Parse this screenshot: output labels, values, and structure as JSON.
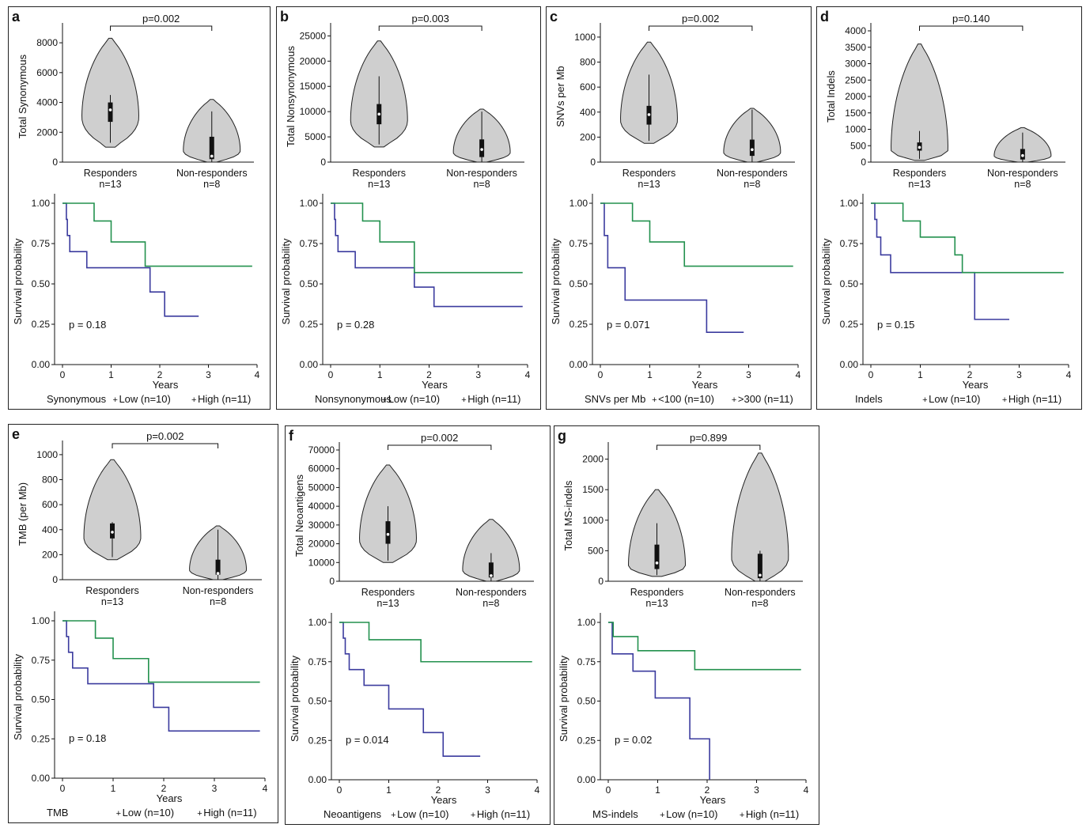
{
  "chart_data": [
    {
      "id": "a",
      "violin": {
        "type": "violin",
        "ylabel": "Total Synonymous",
        "yticks": [
          0,
          2000,
          4000,
          6000,
          8000
        ],
        "ylim": [
          0,
          8800
        ],
        "pvalue": "p=0.002",
        "groups": [
          {
            "name": "Responders",
            "n": "n=13",
            "min": 1000,
            "q1": 2700,
            "median": 3500,
            "q3": 4000,
            "max": 8300,
            "wmin": 1300,
            "wmax": 4500
          },
          {
            "name": "Non-responders",
            "n": "n=8",
            "min": 0,
            "q1": 200,
            "median": 400,
            "q3": 1700,
            "max": 4200,
            "wmin": 0,
            "wmax": 3400
          }
        ]
      },
      "km": {
        "type": "line",
        "ylabel": "Survival probability",
        "xlabel": "Years",
        "xticks": [
          0,
          1,
          2,
          3,
          4
        ],
        "yticks": [
          "0.00",
          "0.25",
          "0.50",
          "0.75",
          "1.00"
        ],
        "xlim": [
          0,
          4
        ],
        "pvalue": "p = 0.18",
        "legend_title": "Synonymous",
        "legend": [
          "Low (n=10)",
          "High (n=11)"
        ],
        "series": [
          {
            "name": "Low (n=10)",
            "color": "#3b3b9e",
            "x": [
              0,
              0.08,
              0.1,
              0.15,
              0.5,
              1.8,
              2.1,
              2.8
            ],
            "y": [
              1,
              0.9,
              0.8,
              0.7,
              0.6,
              0.45,
              0.3,
              0.3
            ]
          },
          {
            "name": "High (n=11)",
            "color": "#23914e",
            "x": [
              0,
              0.65,
              1.0,
              1.7,
              3.9
            ],
            "y": [
              1,
              0.89,
              0.76,
              0.61,
              0.61
            ]
          }
        ]
      }
    },
    {
      "id": "b",
      "violin": {
        "type": "violin",
        "ylabel": "Total Nonsynonymous",
        "yticks": [
          0,
          5000,
          10000,
          15000,
          20000,
          25000
        ],
        "ylim": [
          0,
          26000
        ],
        "pvalue": "p=0.003",
        "groups": [
          {
            "name": "Responders",
            "n": "n=13",
            "min": 3000,
            "q1": 7500,
            "median": 9500,
            "q3": 11500,
            "max": 24000,
            "wmin": 3500,
            "wmax": 17000
          },
          {
            "name": "Non-responders",
            "n": "n=8",
            "min": 0,
            "q1": 1000,
            "median": 2500,
            "q3": 4500,
            "max": 10500,
            "wmin": 0,
            "wmax": 10000
          }
        ]
      },
      "km": {
        "type": "line",
        "ylabel": "Survival probability",
        "xlabel": "Years",
        "xticks": [
          0,
          1,
          2,
          3,
          4
        ],
        "yticks": [
          "0.00",
          "0.25",
          "0.50",
          "0.75",
          "1.00"
        ],
        "xlim": [
          0,
          4
        ],
        "pvalue": "p = 0.28",
        "legend_title": "Nonsynonymous",
        "legend": [
          "Low (n=10)",
          "High (n=11)"
        ],
        "series": [
          {
            "name": "Low (n=10)",
            "color": "#3b3b9e",
            "x": [
              0,
              0.08,
              0.1,
              0.15,
              0.5,
              1.7,
              2.1,
              3.9
            ],
            "y": [
              1,
              0.9,
              0.8,
              0.7,
              0.6,
              0.48,
              0.36,
              0.36
            ]
          },
          {
            "name": "High (n=11)",
            "color": "#23914e",
            "x": [
              0,
              0.65,
              1.0,
              1.7,
              3.9
            ],
            "y": [
              1,
              0.89,
              0.76,
              0.57,
              0.57
            ]
          }
        ]
      }
    },
    {
      "id": "c",
      "violin": {
        "type": "violin",
        "ylabel": "SNVs per Mb",
        "yticks": [
          0,
          200,
          400,
          600,
          800,
          1000
        ],
        "ylim": [
          0,
          1050
        ],
        "pvalue": "p=0.002",
        "groups": [
          {
            "name": "Responders",
            "n": "n=13",
            "min": 150,
            "q1": 300,
            "median": 380,
            "q3": 450,
            "max": 960,
            "wmin": 170,
            "wmax": 700
          },
          {
            "name": "Non-responders",
            "n": "n=8",
            "min": 0,
            "q1": 50,
            "median": 100,
            "q3": 180,
            "max": 430,
            "wmin": 0,
            "wmax": 420
          }
        ]
      },
      "km": {
        "type": "line",
        "ylabel": "Survival probability",
        "xlabel": "Years",
        "xticks": [
          0,
          1,
          2,
          3,
          4
        ],
        "yticks": [
          "0.00",
          "0.25",
          "0.50",
          "0.75",
          "1.00"
        ],
        "xlim": [
          0,
          4
        ],
        "pvalue": "p = 0.071",
        "legend_title": "SNVs per Mb",
        "legend": [
          "<100 (n=10)",
          ">300 (n=11)"
        ],
        "series": [
          {
            "name": "<100 (n=10)",
            "color": "#3b3b9e",
            "x": [
              0,
              0.08,
              0.15,
              0.5,
              2.15,
              2.9
            ],
            "y": [
              1,
              0.8,
              0.6,
              0.4,
              0.2,
              0.2
            ]
          },
          {
            "name": ">300 (n=11)",
            "color": "#23914e",
            "x": [
              0,
              0.65,
              1.0,
              1.7,
              3.9
            ],
            "y": [
              1,
              0.89,
              0.76,
              0.61,
              0.61
            ]
          }
        ]
      }
    },
    {
      "id": "d",
      "violin": {
        "type": "violin",
        "ylabel": "Total Indels",
        "yticks": [
          0,
          500,
          1000,
          1500,
          2000,
          2500,
          3000,
          3500,
          4000
        ],
        "ylim": [
          0,
          4000
        ],
        "pvalue": "p=0.140",
        "groups": [
          {
            "name": "Responders",
            "n": "n=13",
            "min": 50,
            "q1": 350,
            "median": 450,
            "q3": 600,
            "max": 3600,
            "wmin": 100,
            "wmax": 950
          },
          {
            "name": "Non-responders",
            "n": "n=8",
            "min": 0,
            "q1": 80,
            "median": 200,
            "q3": 400,
            "max": 1050,
            "wmin": 0,
            "wmax": 900
          }
        ]
      },
      "km": {
        "type": "line",
        "ylabel": "Survival probability",
        "xlabel": "Years",
        "xticks": [
          0,
          1,
          2,
          3,
          4
        ],
        "yticks": [
          "0.00",
          "0.25",
          "0.50",
          "0.75",
          "1.00"
        ],
        "xlim": [
          0,
          4
        ],
        "pvalue": "p = 0.15",
        "legend_title": "Indels",
        "legend": [
          "Low (n=10)",
          "High (n=11)"
        ],
        "series": [
          {
            "name": "Low (n=10)",
            "color": "#3b3b9e",
            "x": [
              0,
              0.08,
              0.12,
              0.2,
              0.4,
              2.1,
              2.8
            ],
            "y": [
              1,
              0.9,
              0.79,
              0.68,
              0.57,
              0.28,
              0.28
            ]
          },
          {
            "name": "High (n=11)",
            "color": "#23914e",
            "x": [
              0,
              0.65,
              1.0,
              1.7,
              1.85,
              3.9
            ],
            "y": [
              1,
              0.89,
              0.79,
              0.68,
              0.57,
              0.57
            ]
          }
        ]
      }
    },
    {
      "id": "e",
      "violin": {
        "type": "violin",
        "ylabel": "TMB (per Mb)",
        "yticks": [
          0,
          200,
          400,
          600,
          800,
          1000
        ],
        "ylim": [
          0,
          1050
        ],
        "pvalue": "p=0.002",
        "groups": [
          {
            "name": "Responders",
            "n": "n=13",
            "min": 160,
            "q1": 330,
            "median": 380,
            "q3": 450,
            "max": 960,
            "wmin": 180,
            "wmax": 460
          },
          {
            "name": "Non-responders",
            "n": "n=8",
            "min": 0,
            "q1": 40,
            "median": 50,
            "q3": 160,
            "max": 430,
            "wmin": 0,
            "wmax": 400
          }
        ]
      },
      "km": {
        "type": "line",
        "ylabel": "Survival probability",
        "xlabel": "Years",
        "xticks": [
          0,
          1,
          2,
          3,
          4
        ],
        "yticks": [
          "0.00",
          "0.25",
          "0.50",
          "0.75",
          "1.00"
        ],
        "xlim": [
          0,
          4
        ],
        "pvalue": "p = 0.18",
        "legend_title": "TMB",
        "legend": [
          "Low (n=10)",
          "High (n=11)"
        ],
        "series": [
          {
            "name": "Low (n=10)",
            "color": "#3b3b9e",
            "x": [
              0,
              0.08,
              0.12,
              0.2,
              0.5,
              1.8,
              2.1,
              3.9
            ],
            "y": [
              1,
              0.9,
              0.8,
              0.7,
              0.6,
              0.45,
              0.3,
              0.3
            ]
          },
          {
            "name": "High (n=11)",
            "color": "#23914e",
            "x": [
              0,
              0.65,
              1.0,
              1.7,
              3.9
            ],
            "y": [
              1,
              0.89,
              0.76,
              0.61,
              0.61
            ]
          }
        ]
      }
    },
    {
      "id": "f",
      "violin": {
        "type": "violin",
        "ylabel": "Total Neoantigens",
        "yticks": [
          0,
          10000,
          20000,
          30000,
          40000,
          50000,
          60000,
          70000
        ],
        "ylim": [
          0,
          70000
        ],
        "pvalue": "p=0.002",
        "groups": [
          {
            "name": "Responders",
            "n": "n=13",
            "min": 10000,
            "q1": 20000,
            "median": 25000,
            "q3": 32000,
            "max": 62000,
            "wmin": 11000,
            "wmax": 40000
          },
          {
            "name": "Non-responders",
            "n": "n=8",
            "min": 0,
            "q1": 2000,
            "median": 3000,
            "q3": 10000,
            "max": 33000,
            "wmin": 0,
            "wmax": 15000
          }
        ]
      },
      "km": {
        "type": "line",
        "ylabel": "Survival probability",
        "xlabel": "Years",
        "xticks": [
          0,
          1,
          2,
          3,
          4
        ],
        "yticks": [
          "0.00",
          "0.25",
          "0.50",
          "0.75",
          "1.00"
        ],
        "xlim": [
          0,
          4
        ],
        "pvalue": "p = 0.014",
        "legend_title": "Neoantigens",
        "legend": [
          "Low (n=10)",
          "High (n=11)"
        ],
        "series": [
          {
            "name": "Low (n=10)",
            "color": "#3b3b9e",
            "x": [
              0,
              0.08,
              0.12,
              0.2,
              0.5,
              1.0,
              1.7,
              2.1,
              2.85
            ],
            "y": [
              1,
              0.9,
              0.8,
              0.7,
              0.6,
              0.45,
              0.3,
              0.15,
              0.15
            ]
          },
          {
            "name": "High (n=11)",
            "color": "#23914e",
            "x": [
              0,
              0.6,
              1.65,
              3.9
            ],
            "y": [
              1,
              0.89,
              0.75,
              0.75
            ]
          }
        ]
      }
    },
    {
      "id": "g",
      "violin": {
        "type": "violin",
        "ylabel": "Total MS-indels",
        "yticks": [
          0,
          500,
          1000,
          1500,
          2000
        ],
        "ylim": [
          0,
          2150
        ],
        "pvalue": "p=0.899",
        "groups": [
          {
            "name": "Responders",
            "n": "n=13",
            "min": 80,
            "q1": 200,
            "median": 300,
            "q3": 600,
            "max": 1500,
            "wmin": 100,
            "wmax": 950
          },
          {
            "name": "Non-responders",
            "n": "n=8",
            "min": 0,
            "q1": 50,
            "median": 100,
            "q3": 450,
            "max": 2100,
            "wmin": 0,
            "wmax": 500
          }
        ]
      },
      "km": {
        "type": "line",
        "ylabel": "Survival probability",
        "xlabel": "Years",
        "xticks": [
          0,
          1,
          2,
          3,
          4
        ],
        "yticks": [
          "0.00",
          "0.25",
          "0.50",
          "0.75",
          "1.00"
        ],
        "xlim": [
          0,
          4
        ],
        "pvalue": "p = 0.02",
        "legend_title": "MS-indels",
        "legend": [
          "Low (n=10)",
          "High (n=11)"
        ],
        "series": [
          {
            "name": "Low (n=10)",
            "color": "#3b3b9e",
            "x": [
              0,
              0.08,
              0.5,
              0.95,
              1.65,
              2.05,
              2.05
            ],
            "y": [
              1,
              0.8,
              0.69,
              0.52,
              0.26,
              0.26,
              0
            ]
          },
          {
            "name": "High (n=11)",
            "color": "#23914e",
            "x": [
              0,
              0.1,
              0.6,
              1.75,
              3.9
            ],
            "y": [
              1,
              0.91,
              0.82,
              0.7,
              0.7
            ]
          }
        ]
      }
    }
  ]
}
